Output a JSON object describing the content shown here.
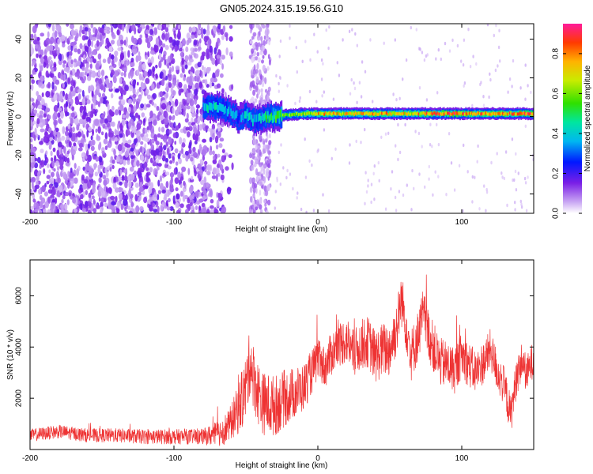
{
  "title": "GN05.2024.315.19.56.G10",
  "chart_data": [
    {
      "type": "heatmap",
      "title": "GN05.2024.315.19.56.G10",
      "xlabel": "Height of straight line (km)",
      "ylabel": "Frequency (Hz)",
      "xlim": [
        -200,
        150
      ],
      "ylim": [
        -50,
        48
      ],
      "xticks": [
        -200,
        -100,
        0,
        100
      ],
      "yticks": [
        -40,
        -20,
        0,
        20,
        40
      ],
      "colorbar": {
        "label": "Normalized spectral amplitude",
        "range": [
          0,
          0.95
        ],
        "ticks": [
          0.0,
          0.2,
          0.4,
          0.6,
          0.8
        ],
        "colormap": "rainbow"
      },
      "features": {
        "noise_region_x": [
          -200,
          -70
        ],
        "noise_strip_x": [
          -47,
          -33
        ],
        "signal_start_x": -80,
        "signal_path": {
          "x": [
            -80,
            -70,
            -62,
            -55,
            -50,
            -45,
            -40,
            -35,
            -30,
            -20,
            -10,
            0,
            20,
            40,
            60,
            80,
            100,
            120,
            150
          ],
          "freq": [
            5,
            5,
            3,
            -1,
            1,
            -2,
            -1,
            0,
            0,
            1,
            1.5,
            1.5,
            1.5,
            1.5,
            1.5,
            1.5,
            1.5,
            1.5,
            1.5
          ],
          "amplitude": [
            0.45,
            0.5,
            0.4,
            0.35,
            0.5,
            0.4,
            0.45,
            0.55,
            0.6,
            0.65,
            0.7,
            0.85,
            0.8,
            0.85,
            0.8,
            0.9,
            0.9,
            0.85,
            0.95
          ]
        }
      }
    },
    {
      "type": "line",
      "xlabel": "Height of straight line (km)",
      "ylabel": "SNR (10 * v/v)",
      "xlim": [
        -200,
        150
      ],
      "ylim": [
        0,
        7400
      ],
      "xticks": [
        -200,
        -100,
        0,
        100
      ],
      "yticks": [
        2000,
        4000,
        6000
      ],
      "color": "#ee3333",
      "series": [
        {
          "x": [
            -200,
            -180,
            -160,
            -140,
            -120,
            -100,
            -80,
            -70,
            -62,
            -55,
            -50,
            -47,
            -45,
            -42,
            -38,
            -30,
            -20,
            -10,
            0,
            5,
            10,
            15,
            20,
            25,
            30,
            35,
            40,
            45,
            50,
            55,
            58,
            62,
            65,
            70,
            73,
            78,
            85,
            90,
            95,
            100,
            105,
            110,
            115,
            120,
            125,
            130,
            134,
            138,
            142,
            145,
            150
          ],
          "values": [
            550,
            700,
            550,
            550,
            500,
            500,
            500,
            600,
            900,
            1600,
            2400,
            3500,
            2900,
            2300,
            1800,
            1700,
            2100,
            2400,
            3500,
            3200,
            3800,
            4100,
            4300,
            3700,
            4100,
            4200,
            3600,
            3900,
            3900,
            4800,
            5900,
            4700,
            3700,
            4500,
            5300,
            4300,
            3400,
            3300,
            3100,
            3700,
            3300,
            3000,
            3400,
            3900,
            3000,
            2400,
            1300,
            2800,
            3500,
            2900,
            3600
          ]
        }
      ],
      "noise_amplitude_points": {
        "x": [
          -200,
          -80,
          -60,
          -50,
          -30,
          0,
          50,
          100,
          150
        ],
        "values": [
          250,
          300,
          700,
          1300,
          1200,
          800,
          1100,
          900,
          700
        ]
      }
    }
  ]
}
